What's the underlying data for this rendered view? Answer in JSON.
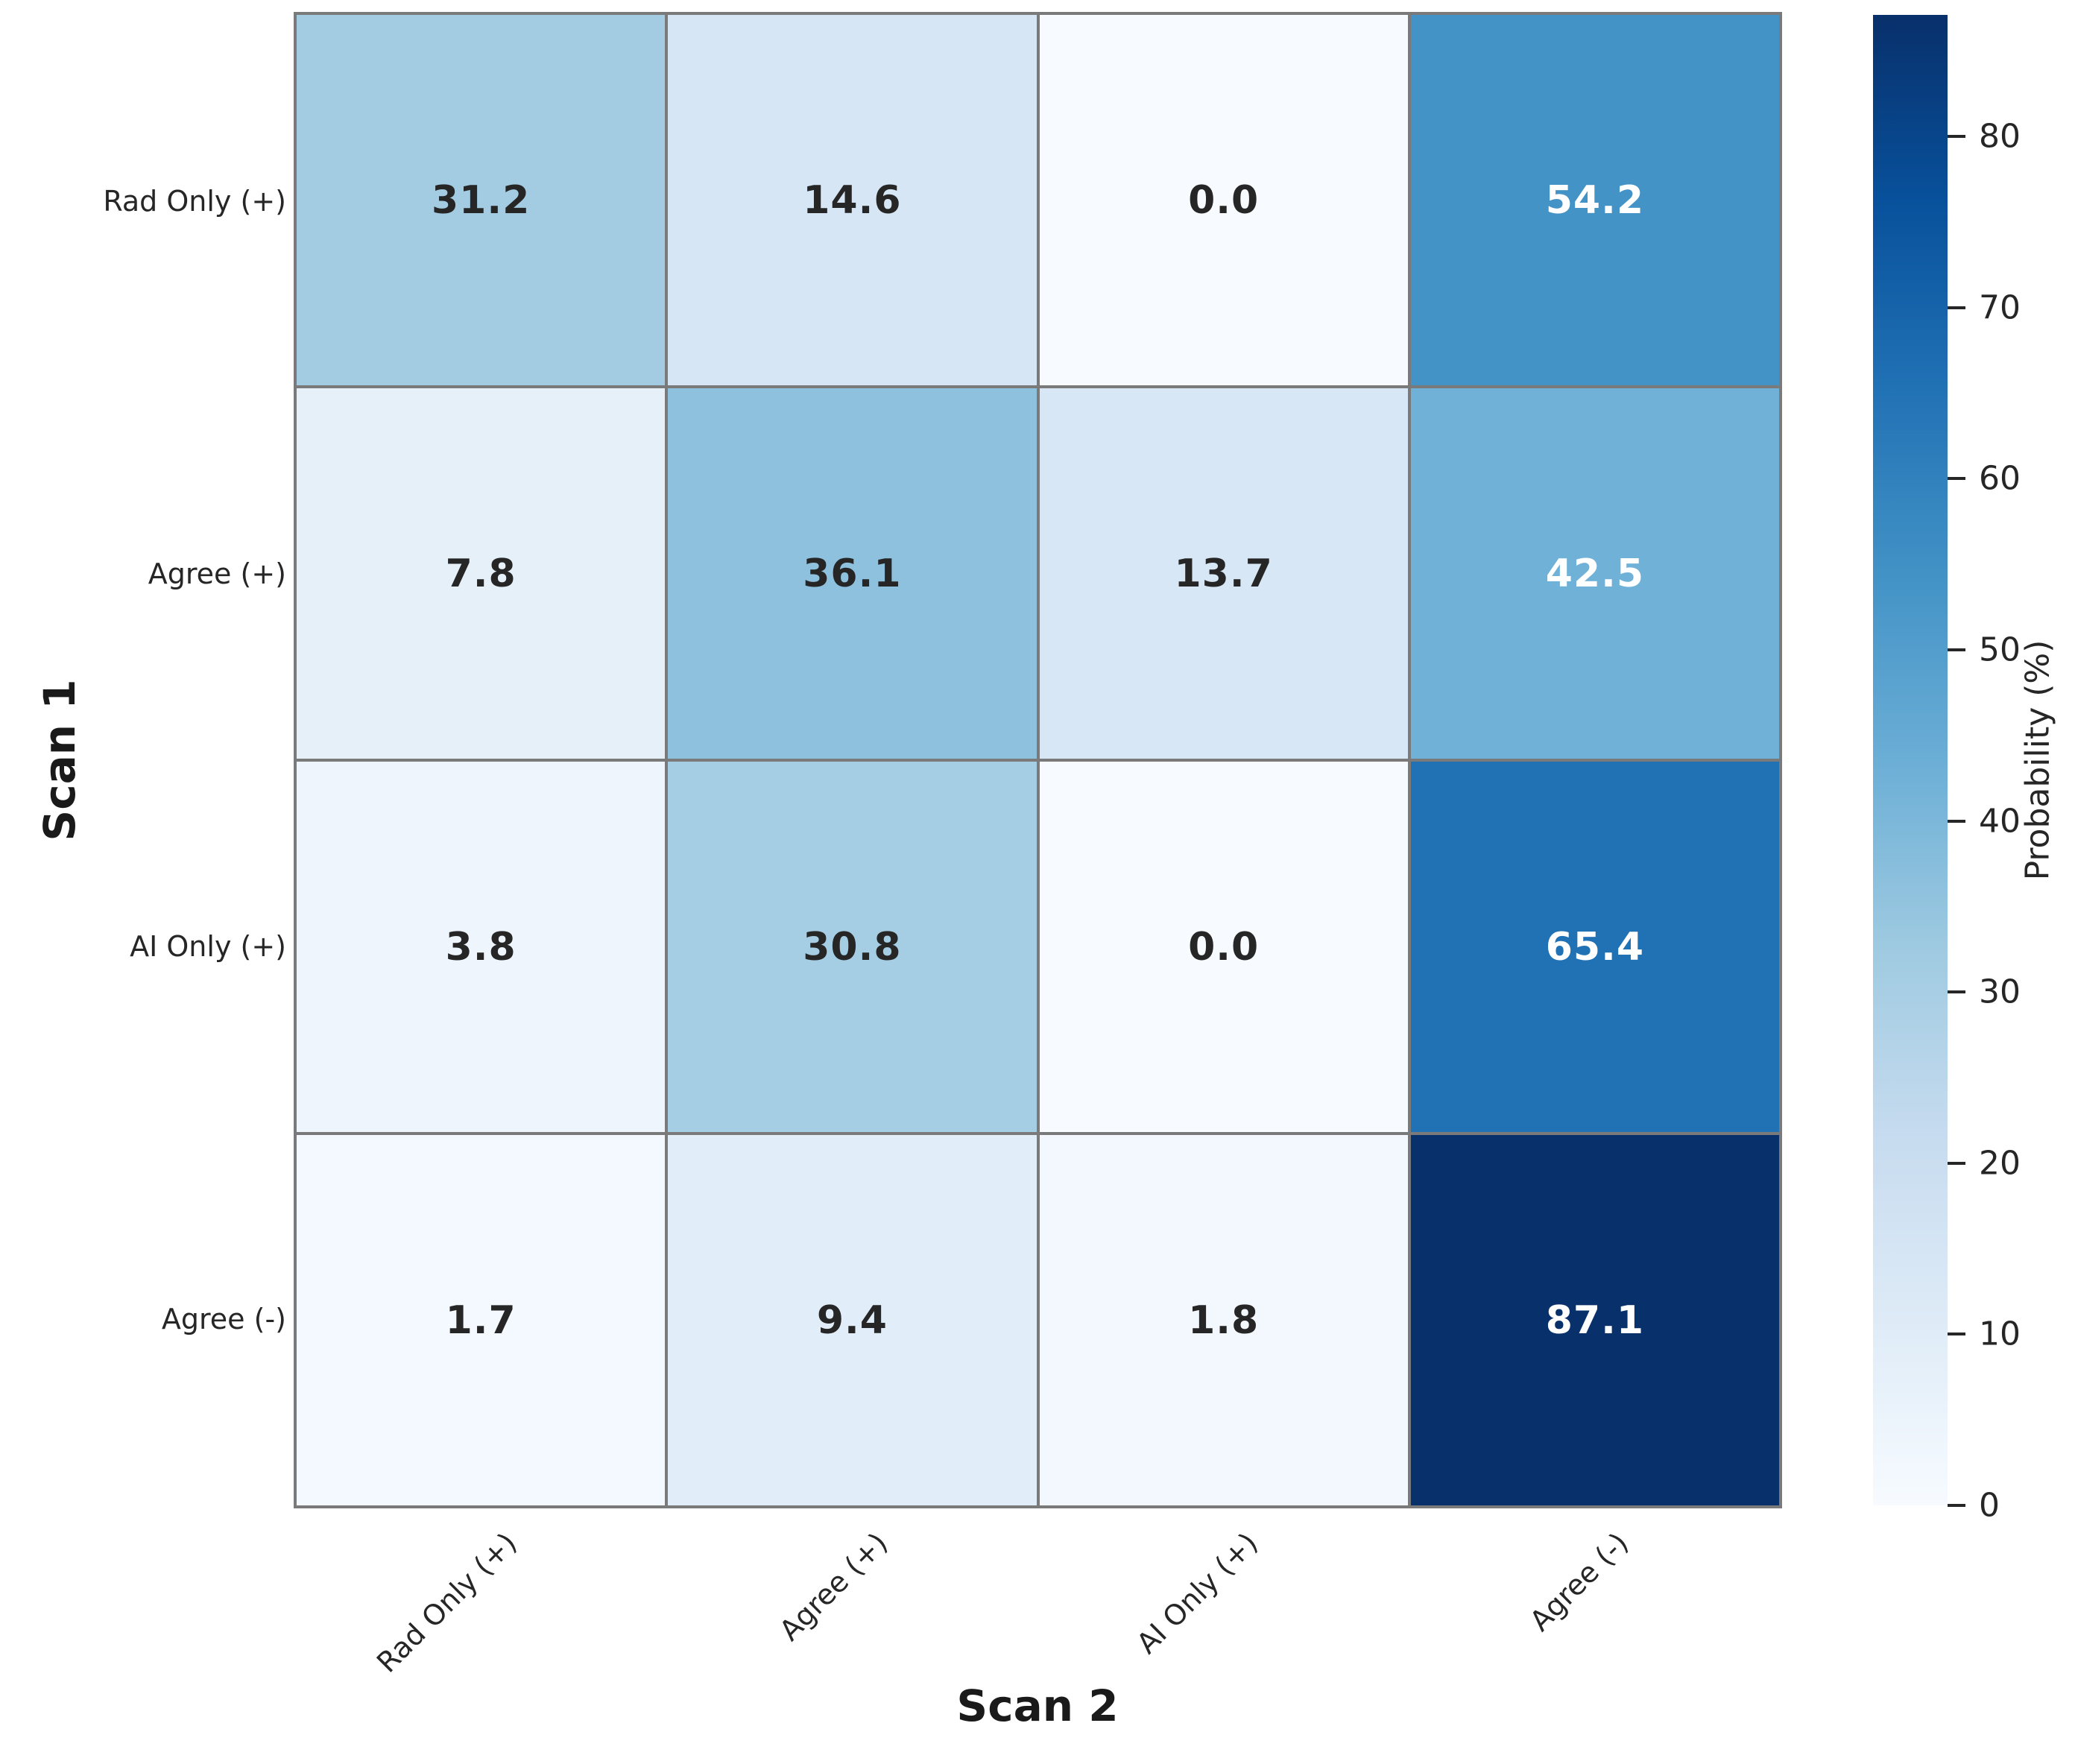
{
  "chart_data": {
    "type": "heatmap",
    "xlabel": "Scan 2",
    "ylabel": "Scan 1",
    "x_categories": [
      "Rad Only (+)",
      "Agree (+)",
      "AI Only (+)",
      "Agree (-)"
    ],
    "y_categories": [
      "Rad Only (+)",
      "Agree (+)",
      "AI Only (+)",
      "Agree (-)"
    ],
    "values": [
      [
        31.2,
        14.6,
        0.0,
        54.2
      ],
      [
        7.8,
        36.1,
        13.7,
        42.5
      ],
      [
        3.8,
        30.8,
        0.0,
        65.4
      ],
      [
        1.7,
        9.4,
        1.8,
        87.1
      ]
    ],
    "value_decimals": 1,
    "colorbar": {
      "label": "Probability (%)",
      "ticks": [
        0,
        10,
        20,
        30,
        40,
        50,
        60,
        70,
        80
      ],
      "vmin": 0,
      "vmax": 87.1
    },
    "colormap": {
      "name": "Blues",
      "anchors": [
        "#f7fbff",
        "#deebf7",
        "#c6dbef",
        "#9ecae1",
        "#6baed6",
        "#4292c6",
        "#2171b5",
        "#08519c",
        "#08306b"
      ]
    },
    "grid_line_color": "#7a7a7a",
    "annotation_dark_color": "#262626",
    "annotation_light_color": "#ffffff",
    "background_color": "#ffffff",
    "legend_position": "right-colorbar",
    "grid": "cell-borders"
  }
}
